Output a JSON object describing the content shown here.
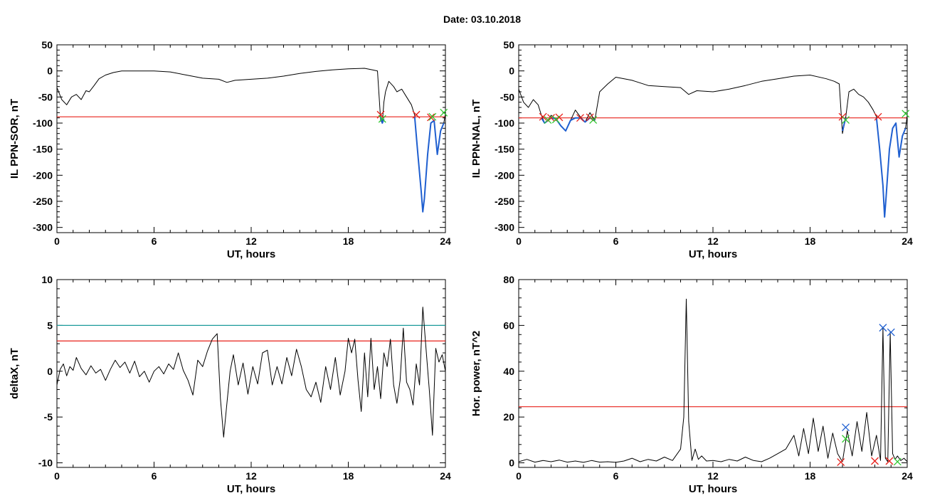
{
  "figure": {
    "title": "Date:  03.10.2018"
  },
  "colors": {
    "trace": "#000000",
    "threshold": "#e8201a",
    "upper_threshold": "#1a9a9a",
    "highlight": "#1f5fd0",
    "end_marker": "#31c831"
  },
  "chart_data": [
    {
      "id": "sor",
      "type": "line",
      "ylabel": "IL PPN-SOR, nT",
      "xlabel": "UT, hours",
      "xlim": [
        0,
        24
      ],
      "ylim": [
        -310,
        50
      ],
      "xticks": [
        0,
        6,
        12,
        18,
        24
      ],
      "yticks": [
        50,
        0,
        -50,
        -100,
        -150,
        -200,
        -250,
        -300
      ],
      "threshold": -88,
      "series": [
        {
          "x": [
            0,
            0.3,
            0.6,
            0.9,
            1.2,
            1.5,
            1.8,
            2.0,
            2.3,
            2.6,
            3.0,
            3.5,
            4.0,
            5.0,
            6.0,
            7.0,
            8.0,
            9.0,
            10.0,
            10.5,
            11.0,
            12.0,
            13.0,
            14.0,
            15.0,
            16.0,
            17.0,
            18.0,
            19.0,
            19.5,
            19.8,
            20.0,
            20.1,
            20.2,
            20.3,
            20.5,
            20.8,
            21.0,
            21.3,
            21.6,
            21.9,
            22.1,
            22.3,
            22.5,
            22.6,
            22.7,
            22.9,
            23.1,
            23.3,
            23.5,
            23.7,
            23.9,
            24
          ],
          "y": [
            -32,
            -55,
            -65,
            -50,
            -45,
            -55,
            -38,
            -40,
            -28,
            -15,
            -8,
            -3,
            0,
            0,
            0,
            -2,
            -8,
            -14,
            -16,
            -22,
            -18,
            -16,
            -14,
            -10,
            -5,
            -1,
            2,
            4,
            5,
            2,
            0,
            -95,
            -100,
            -60,
            -40,
            -20,
            -30,
            -40,
            -35,
            -50,
            -65,
            -85,
            -160,
            -230,
            -270,
            -245,
            -160,
            -100,
            -95,
            -160,
            -115,
            -100,
            -82
          ]
        },
        {
          "x": [
            20.0,
            20.1,
            20.2
          ],
          "y": [
            -88,
            -100,
            -92
          ]
        },
        {
          "x": [
            22.1,
            22.3,
            22.5,
            22.6,
            22.7,
            22.9,
            23.1,
            23.3,
            23.5,
            23.7,
            23.9
          ],
          "y": [
            -88,
            -160,
            -230,
            -270,
            -245,
            -160,
            -100,
            -95,
            -160,
            -115,
            -100
          ]
        }
      ],
      "markers": [
        {
          "x": 20.0,
          "y": -84,
          "kind": "threshold"
        },
        {
          "x": 22.2,
          "y": -84,
          "kind": "threshold"
        },
        {
          "x": 23.1,
          "y": -89,
          "kind": "threshold"
        },
        {
          "x": 23.2,
          "y": -88,
          "kind": "end"
        },
        {
          "x": 20.1,
          "y": -92,
          "kind": "end"
        },
        {
          "x": 23.9,
          "y": -80,
          "kind": "end"
        }
      ]
    },
    {
      "id": "nal",
      "type": "line",
      "ylabel": "IL PPN-NAL, nT",
      "xlabel": "UT, hours",
      "xlim": [
        0,
        24
      ],
      "ylim": [
        -310,
        50
      ],
      "xticks": [
        0,
        6,
        12,
        18,
        24
      ],
      "yticks": [
        50,
        0,
        -50,
        -100,
        -150,
        -200,
        -250,
        -300
      ],
      "threshold": -90,
      "series": [
        {
          "x": [
            0,
            0.3,
            0.6,
            0.9,
            1.2,
            1.4,
            1.6,
            1.8,
            2.0,
            2.3,
            2.6,
            2.9,
            3.2,
            3.5,
            3.8,
            4.1,
            4.4,
            4.7,
            5.0,
            5.5,
            6.0,
            7.0,
            8.0,
            9.0,
            10.0,
            10.5,
            11.0,
            12.0,
            13.0,
            14.0,
            15.0,
            16.0,
            17.0,
            18.0,
            19.0,
            19.5,
            19.8,
            20.0,
            20.2,
            20.4,
            20.7,
            21.0,
            21.3,
            21.6,
            21.9,
            22.1,
            22.3,
            22.5,
            22.6,
            22.7,
            22.9,
            23.1,
            23.3,
            23.5,
            23.7,
            23.9,
            24
          ],
          "y": [
            -35,
            -60,
            -70,
            -55,
            -65,
            -85,
            -100,
            -95,
            -85,
            -92,
            -105,
            -115,
            -95,
            -75,
            -88,
            -98,
            -80,
            -95,
            -40,
            -25,
            -12,
            -18,
            -28,
            -30,
            -32,
            -45,
            -38,
            -40,
            -35,
            -28,
            -20,
            -15,
            -10,
            -8,
            -15,
            -20,
            -25,
            -120,
            -90,
            -40,
            -35,
            -45,
            -50,
            -60,
            -75,
            -88,
            -150,
            -220,
            -280,
            -240,
            -150,
            -110,
            -100,
            -165,
            -125,
            -110,
            -85
          ]
        },
        {
          "x": [
            1.4,
            1.6,
            1.8,
            2.0,
            2.3,
            2.6,
            2.9,
            3.2,
            3.5,
            3.8,
            4.1,
            4.4,
            4.7
          ],
          "y": [
            -90,
            -100,
            -95,
            -90,
            -92,
            -105,
            -115,
            -95,
            -90,
            -90,
            -98,
            -90,
            -95
          ]
        },
        {
          "x": [
            20.0,
            20.2
          ],
          "y": [
            -115,
            -90
          ]
        },
        {
          "x": [
            22.1,
            22.3,
            22.5,
            22.6,
            22.7,
            22.9,
            23.1,
            23.3,
            23.5,
            23.7,
            23.9
          ],
          "y": [
            -90,
            -150,
            -220,
            -280,
            -240,
            -150,
            -110,
            -100,
            -165,
            -125,
            -110
          ]
        }
      ],
      "markers": [
        {
          "x": 1.5,
          "y": -88,
          "kind": "threshold"
        },
        {
          "x": 2.0,
          "y": -90,
          "kind": "threshold"
        },
        {
          "x": 2.5,
          "y": -89,
          "kind": "threshold"
        },
        {
          "x": 3.8,
          "y": -90,
          "kind": "threshold"
        },
        {
          "x": 4.4,
          "y": -89,
          "kind": "threshold"
        },
        {
          "x": 20.0,
          "y": -88,
          "kind": "threshold"
        },
        {
          "x": 22.2,
          "y": -88,
          "kind": "threshold"
        },
        {
          "x": 1.8,
          "y": -94,
          "kind": "end"
        },
        {
          "x": 2.3,
          "y": -93,
          "kind": "end"
        },
        {
          "x": 4.6,
          "y": -94,
          "kind": "end"
        },
        {
          "x": 20.2,
          "y": -94,
          "kind": "end"
        },
        {
          "x": 23.9,
          "y": -82,
          "kind": "end"
        }
      ]
    },
    {
      "id": "deltax",
      "type": "line",
      "ylabel": "deltaX, nT",
      "xlabel": "UT, hours",
      "xlim": [
        0,
        24
      ],
      "ylim": [
        -10.5,
        10
      ],
      "xticks": [
        0,
        6,
        12,
        18,
        24
      ],
      "yticks": [
        10,
        5,
        0,
        -5,
        -10
      ],
      "thresholds": [
        3.3,
        5.0
      ],
      "series": [
        {
          "x": [
            0,
            0.2,
            0.4,
            0.6,
            0.8,
            1.0,
            1.2,
            1.5,
            1.8,
            2.1,
            2.4,
            2.7,
            3.0,
            3.3,
            3.6,
            3.9,
            4.2,
            4.5,
            4.8,
            5.1,
            5.4,
            5.7,
            6.0,
            6.3,
            6.6,
            6.9,
            7.2,
            7.5,
            7.8,
            8.1,
            8.4,
            8.7,
            9.0,
            9.3,
            9.6,
            9.9,
            10.1,
            10.3,
            10.5,
            10.7,
            10.9,
            11.2,
            11.5,
            11.8,
            12.1,
            12.4,
            12.7,
            13.0,
            13.3,
            13.6,
            13.9,
            14.2,
            14.5,
            14.8,
            15.1,
            15.4,
            15.7,
            16.0,
            16.3,
            16.6,
            16.9,
            17.2,
            17.5,
            17.8,
            18.0,
            18.2,
            18.4,
            18.6,
            18.8,
            19.0,
            19.2,
            19.4,
            19.6,
            19.8,
            20.0,
            20.2,
            20.4,
            20.6,
            20.8,
            21.0,
            21.2,
            21.4,
            21.6,
            21.8,
            22.0,
            22.2,
            22.4,
            22.6,
            22.8,
            23.0,
            23.2,
            23.4,
            23.6,
            23.8,
            24
          ],
          "y": [
            -1.5,
            0.2,
            0.8,
            -0.5,
            0.5,
            0.1,
            1.5,
            0.3,
            -0.4,
            0.6,
            -0.2,
            0.2,
            -1.0,
            0.2,
            1.2,
            0.4,
            1.0,
            -0.2,
            1.1,
            -0.6,
            0.0,
            -1.2,
            0.0,
            0.5,
            -0.3,
            0.8,
            0.2,
            2.0,
            0.1,
            -1.0,
            -2.6,
            1.2,
            0.5,
            2.2,
            3.5,
            4.1,
            -3.0,
            -7.2,
            -3.5,
            0.0,
            1.8,
            -1.5,
            0.9,
            -2.5,
            0.5,
            -1.4,
            2.0,
            2.3,
            -1.5,
            0.5,
            -1.4,
            1.5,
            -0.5,
            2.4,
            0.5,
            -2.0,
            -2.8,
            -1.2,
            -3.4,
            0.5,
            -2.0,
            1.5,
            -2.6,
            0.0,
            3.6,
            2.0,
            3.5,
            -1.0,
            -4.4,
            2.0,
            -2.8,
            3.6,
            -2.0,
            0.5,
            -3.0,
            2.0,
            0.5,
            3.5,
            -1.5,
            -3.5,
            -1.0,
            4.7,
            -1.2,
            -2.0,
            -3.7,
            0.8,
            -1.5,
            7.0,
            2.5,
            -2.0,
            -7.0,
            2.5,
            1.0,
            1.8,
            0.0
          ]
        }
      ]
    },
    {
      "id": "power",
      "type": "line",
      "ylabel": "Hor. power, nT^2",
      "xlabel": "UT, hours",
      "xlim": [
        0,
        24
      ],
      "ylim": [
        -2,
        80
      ],
      "xticks": [
        0,
        6,
        12,
        18,
        24
      ],
      "yticks": [
        80,
        60,
        40,
        20,
        0
      ],
      "threshold": 24.5,
      "series": [
        {
          "x": [
            0,
            0.5,
            1.0,
            1.5,
            2.0,
            2.5,
            3.0,
            3.5,
            4.0,
            4.5,
            5.0,
            5.5,
            6.0,
            6.5,
            7.0,
            7.5,
            8.0,
            8.5,
            9.0,
            9.5,
            10.0,
            10.2,
            10.35,
            10.5,
            10.7,
            10.9,
            11.1,
            11.3,
            11.6,
            12.0,
            12.5,
            13.0,
            13.5,
            14.0,
            14.5,
            15.0,
            15.5,
            16.0,
            16.5,
            17.0,
            17.3,
            17.6,
            17.9,
            18.2,
            18.5,
            18.8,
            19.1,
            19.4,
            19.7,
            20.0,
            20.3,
            20.6,
            20.9,
            21.2,
            21.5,
            21.8,
            22.1,
            22.35,
            22.5,
            22.65,
            22.8,
            22.95,
            23.1,
            23.25,
            23.4,
            23.6,
            23.8,
            24
          ],
          "y": [
            0.5,
            1.5,
            0.3,
            1.0,
            0.5,
            1.2,
            0.3,
            0.8,
            0.2,
            1.0,
            0.3,
            0.5,
            0.2,
            0.8,
            2.0,
            0.5,
            1.5,
            0.8,
            2.5,
            1.0,
            6.0,
            20.0,
            71.5,
            18.0,
            1.0,
            6.0,
            1.5,
            3.0,
            0.8,
            1.0,
            0.5,
            1.5,
            0.8,
            2.5,
            1.0,
            0.5,
            2.0,
            4.0,
            6.0,
            12.0,
            3.0,
            15.0,
            4.0,
            19.5,
            5.0,
            16.0,
            2.0,
            13.0,
            4.0,
            0.5,
            14.0,
            3.0,
            18.0,
            5.0,
            22.0,
            3.0,
            12.0,
            1.0,
            59.0,
            2.0,
            0.5,
            57.0,
            4.0,
            1.5,
            3.0,
            1.0,
            2.0,
            0.5
          ]
        }
      ],
      "markers": [
        {
          "x": 22.5,
          "y": 59,
          "kind": "upper"
        },
        {
          "x": 23.0,
          "y": 57,
          "kind": "upper"
        },
        {
          "x": 20.2,
          "y": 15.5,
          "kind": "upper"
        },
        {
          "x": 20.2,
          "y": 10.5,
          "kind": "end"
        },
        {
          "x": 19.9,
          "y": 0.3,
          "kind": "threshold"
        },
        {
          "x": 22.0,
          "y": 0.8,
          "kind": "threshold"
        },
        {
          "x": 22.9,
          "y": 0.8,
          "kind": "threshold"
        },
        {
          "x": 23.4,
          "y": 0.5,
          "kind": "end"
        }
      ]
    }
  ]
}
